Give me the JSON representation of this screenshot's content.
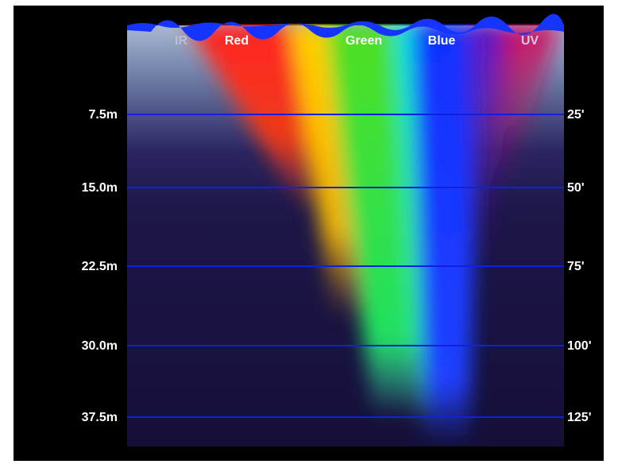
{
  "bands": [
    "IR",
    "Red",
    "Green",
    "Blue",
    "UV"
  ],
  "depths": [
    {
      "meters": "7.5m",
      "feet": "25'"
    },
    {
      "meters": "15.0m",
      "feet": "50'"
    },
    {
      "meters": "22.5m",
      "feet": "75'"
    },
    {
      "meters": "30.0m",
      "feet": "100'"
    },
    {
      "meters": "37.5m",
      "feet": "125'"
    }
  ]
}
